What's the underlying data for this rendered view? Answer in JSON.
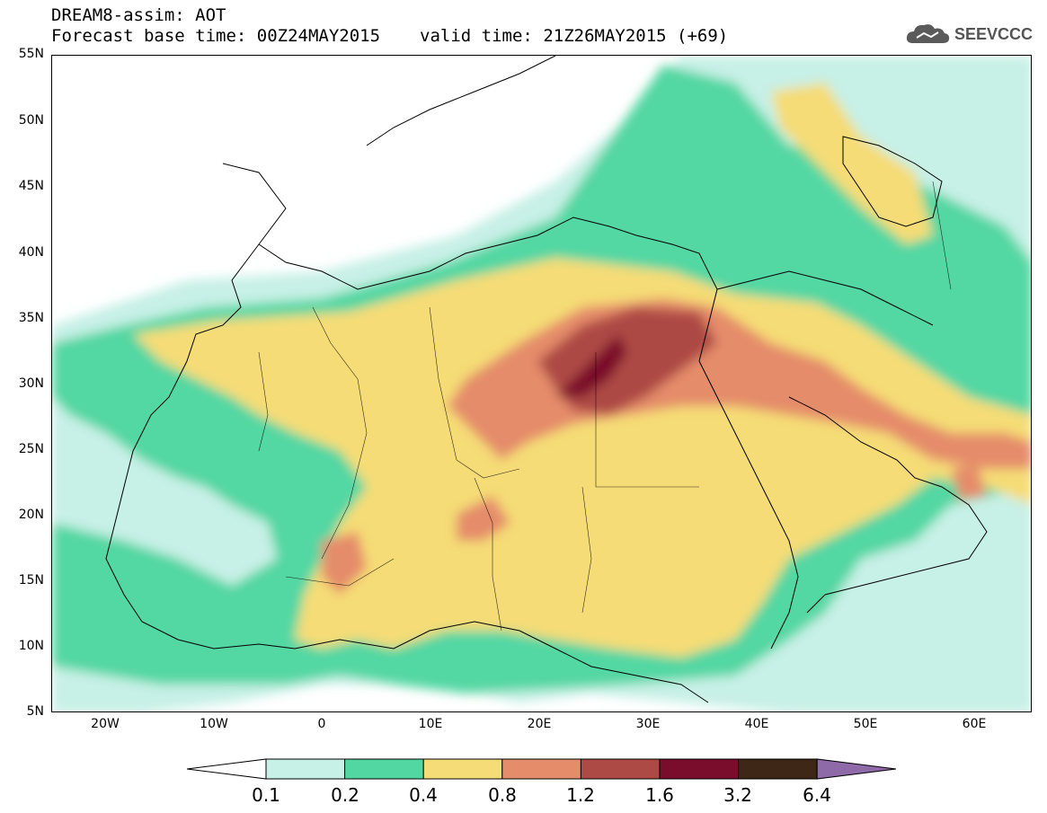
{
  "header": {
    "line1": "DREAM8-assim: AOT",
    "base_time": "Forecast base time: 00Z24MAY2015",
    "valid_time": "valid time: 21Z26MAY2015 (+69)"
  },
  "logo": {
    "text": "SEEVCCC",
    "icon": "cloud-icon"
  },
  "axes": {
    "lat_labels": [
      "55N",
      "50N",
      "45N",
      "40N",
      "35N",
      "30N",
      "25N",
      "20N",
      "15N",
      "10N",
      "5N"
    ],
    "lon_labels": [
      "20W",
      "10W",
      "0",
      "10E",
      "20E",
      "30E",
      "40E",
      "50E",
      "60E"
    ]
  },
  "colorbar": {
    "labels": [
      "0.1",
      "0.2",
      "0.4",
      "0.8",
      "1.2",
      "1.6",
      "3.2",
      "6.4"
    ],
    "colors": [
      "#ffffff",
      "#c7f0e6",
      "#52d7a3",
      "#f5dc76",
      "#e58c6a",
      "#ad4a45",
      "#7a0c2c",
      "#3e2717",
      "#8f6aa8"
    ]
  }
}
